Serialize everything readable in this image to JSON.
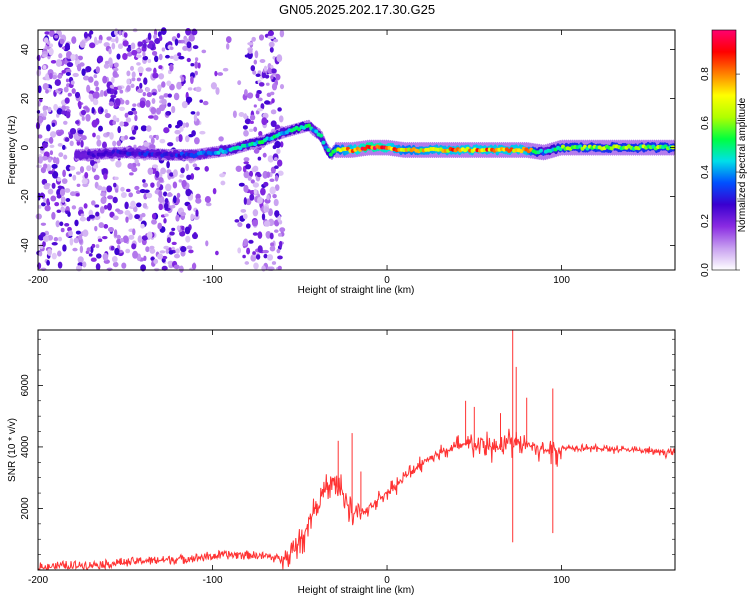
{
  "title": "GN05.2025.202.17.30.G25",
  "chart_data": [
    {
      "type": "heatmap",
      "xlabel": "Height of straight line (km)",
      "ylabel": "Frequency (Hz)",
      "xlim": [
        -200,
        165
      ],
      "ylim": [
        -50,
        48
      ],
      "xticks": [
        -200,
        -100,
        0,
        100
      ],
      "yticks": [
        -40,
        -20,
        0,
        20,
        40
      ],
      "colorbar": {
        "label": "Normalized spectral amplitude",
        "range": [
          0,
          0.98
        ],
        "ticks": [
          0.0,
          0.2,
          0.4,
          0.6,
          0.8
        ],
        "tick_labels": [
          "0.0",
          "0.2",
          "0.4",
          "0.6",
          "0.8"
        ],
        "colormap": [
          "#ffffff",
          "#c8a0f0",
          "#8a2be2",
          "#3a00d0",
          "#0050ff",
          "#00e0e8",
          "#00ff40",
          "#b0ff00",
          "#ffff00",
          "#ff8000",
          "#ff0000",
          "#ff0070"
        ]
      },
      "ridge": {
        "x": [
          -175,
          -150,
          -125,
          -110,
          -100,
          -90,
          -80,
          -70,
          -60,
          -50,
          -45,
          -42,
          -38,
          -35,
          -32,
          -30,
          -25,
          -20,
          -10,
          0,
          10,
          20,
          40,
          60,
          80,
          90,
          100,
          120,
          140,
          165
        ],
        "freq": [
          -3,
          -2,
          -3,
          -3,
          -2,
          -1,
          1,
          3,
          6,
          8,
          9,
          7,
          5,
          0,
          -3,
          -1,
          -1,
          -1,
          0,
          0,
          -1,
          -1,
          -1,
          -1,
          -1,
          -2,
          0,
          0,
          0,
          0
        ],
        "amplitude": [
          0.25,
          0.3,
          0.3,
          0.35,
          0.4,
          0.45,
          0.45,
          0.5,
          0.45,
          0.5,
          0.5,
          0.4,
          0.45,
          0.45,
          0.55,
          0.6,
          0.75,
          0.8,
          0.9,
          0.85,
          0.7,
          0.75,
          0.8,
          0.8,
          0.8,
          0.4,
          0.6,
          0.6,
          0.6,
          0.6
        ]
      },
      "noise_band_x": [
        -200,
        -60
      ]
    },
    {
      "type": "line",
      "xlabel": "Height of straight line (km)",
      "ylabel": "SNR (10 * v/v)",
      "xlim": [
        -200,
        165
      ],
      "ylim": [
        0,
        7800
      ],
      "xticks": [
        -200,
        -100,
        0,
        100
      ],
      "yticks": [
        2000,
        4000,
        6000
      ],
      "color": "#ff3333",
      "x": [
        -200,
        -180,
        -160,
        -150,
        -140,
        -120,
        -110,
        -100,
        -90,
        -80,
        -70,
        -60,
        -55,
        -50,
        -45,
        -40,
        -35,
        -30,
        -25,
        -20,
        -15,
        -10,
        -5,
        0,
        10,
        20,
        30,
        40,
        50,
        60,
        65,
        70,
        72,
        75,
        80,
        85,
        90,
        95,
        100,
        110,
        120,
        140,
        165
      ],
      "y": [
        100,
        150,
        200,
        250,
        300,
        350,
        400,
        450,
        500,
        500,
        450,
        350,
        500,
        900,
        1500,
        2200,
        2600,
        2800,
        2500,
        1800,
        1900,
        2000,
        2300,
        2500,
        3000,
        3500,
        3800,
        4000,
        4100,
        4000,
        3900,
        4300,
        4000,
        4100,
        4100,
        4000,
        3900,
        3900,
        3950,
        4000,
        3950,
        3900,
        3800
      ],
      "spikes": [
        {
          "x": -28,
          "y": 4200
        },
        {
          "x": -20,
          "y": 4450
        },
        {
          "x": -15,
          "y": 3200
        },
        {
          "x": 45,
          "y": 5500
        },
        {
          "x": 50,
          "y": 5300
        },
        {
          "x": 65,
          "y": 5100
        },
        {
          "x": 72,
          "y": 7800
        },
        {
          "x": 74,
          "y": 6600
        },
        {
          "x": 80,
          "y": 5600
        },
        {
          "x": 95,
          "y": 5900
        },
        {
          "x": 72,
          "y": 900
        },
        {
          "x": 95,
          "y": 1200
        }
      ]
    }
  ]
}
